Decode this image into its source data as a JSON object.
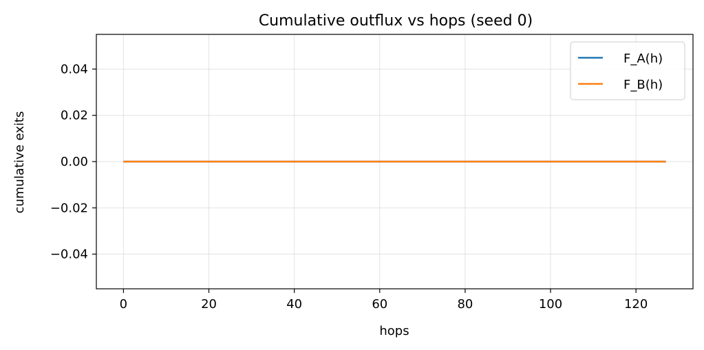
{
  "chart_data": {
    "type": "line",
    "title": "Cumulative outflux vs hops (seed 0)",
    "xlabel": "hops",
    "ylabel": "cumulative exits",
    "xlim": [
      -6.35,
      133.35
    ],
    "ylim": [
      -0.055,
      0.055
    ],
    "xticks": [
      0,
      20,
      40,
      60,
      80,
      100,
      120
    ],
    "xtick_labels": [
      "0",
      "20",
      "40",
      "60",
      "80",
      "100",
      "120"
    ],
    "yticks": [
      -0.04,
      -0.02,
      0.0,
      0.02,
      0.04
    ],
    "ytick_labels": [
      "−0.04",
      "−0.02",
      "0.00",
      "0.02",
      "0.04"
    ],
    "grid": true,
    "legend_position": "top-right",
    "series": [
      {
        "name": "F_A(h)",
        "color": "#1f77b4",
        "x_start": 0,
        "x_end": 127,
        "constant_value": 0.0
      },
      {
        "name": "F_B(h)",
        "color": "#ff7f0e",
        "x_start": 0,
        "x_end": 127,
        "constant_value": 0.0
      }
    ]
  }
}
